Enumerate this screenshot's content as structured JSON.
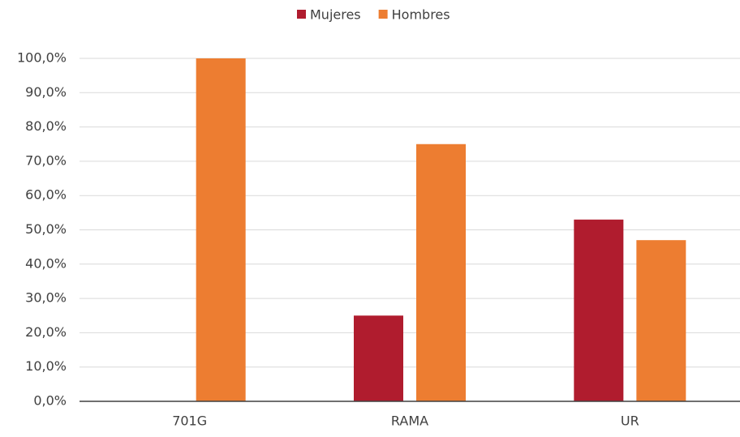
{
  "chart_data": {
    "type": "bar",
    "categories": [
      "701G",
      "RAMA",
      "UR"
    ],
    "series": [
      {
        "name": "Mujeres",
        "color": "#b01c2e",
        "values": [
          0,
          25,
          53
        ]
      },
      {
        "name": "Hombres",
        "color": "#ed7d31",
        "values": [
          100,
          75,
          47
        ]
      }
    ],
    "ylim": [
      0,
      100
    ],
    "yticks": [
      {
        "value": 0,
        "label": "0,0%"
      },
      {
        "value": 10,
        "label": "10,0%"
      },
      {
        "value": 20,
        "label": "20,0%"
      },
      {
        "value": 30,
        "label": "30,0%"
      },
      {
        "value": 40,
        "label": "40,0%"
      },
      {
        "value": 50,
        "label": "50,0%"
      },
      {
        "value": 60,
        "label": "60,0%"
      },
      {
        "value": 70,
        "label": "70,0%"
      },
      {
        "value": 80,
        "label": "80,0%"
      },
      {
        "value": 90,
        "label": "90,0%"
      },
      {
        "value": 100,
        "label": "100,0%"
      }
    ],
    "grid": true,
    "legend": "top"
  }
}
